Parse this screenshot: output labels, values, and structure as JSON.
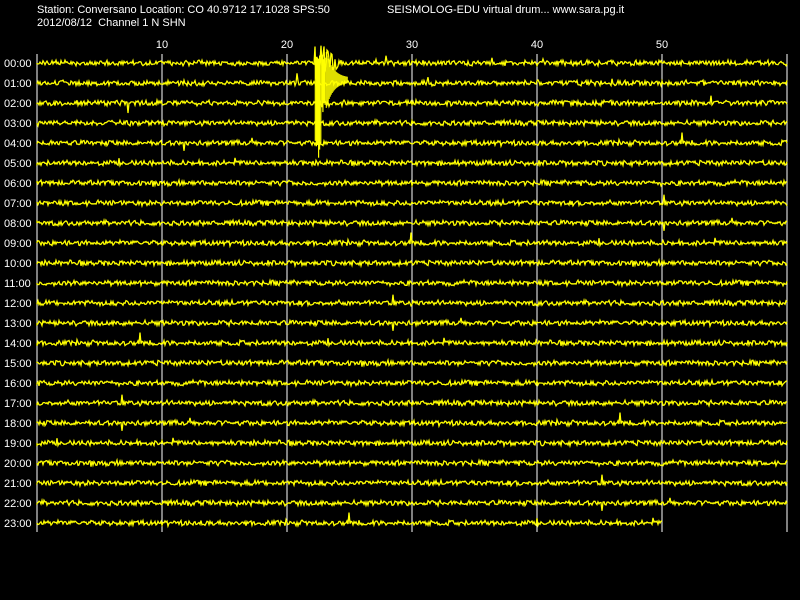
{
  "header": {
    "station_line": "Station: Conversano Location: CO 40.9712 17.1028 SPS:50",
    "title": "SEISMOLOG-EDU virtual drum... www.sara.pg.it",
    "date_line": "2012/08/12  Channel 1 N SHN"
  },
  "colors": {
    "background": "#000000",
    "trace": "#ffff00",
    "grid": "#ffffff",
    "text": "#ffffff"
  },
  "drum": {
    "minute_ticks": [
      "10",
      "20",
      "30",
      "40",
      "50"
    ],
    "hour_labels": [
      "00:00",
      "01:00",
      "02:00",
      "03:00",
      "04:00",
      "05:00",
      "06:00",
      "07:00",
      "08:00",
      "09:00",
      "10:00",
      "11:00",
      "12:00",
      "13:00",
      "14:00",
      "15:00",
      "16:00",
      "17:00",
      "18:00",
      "19:00",
      "20:00",
      "21:00",
      "22:00",
      "23:00"
    ],
    "last_row_end_minute": 50,
    "event": {
      "row": 0,
      "minute": 22.5
    }
  }
}
